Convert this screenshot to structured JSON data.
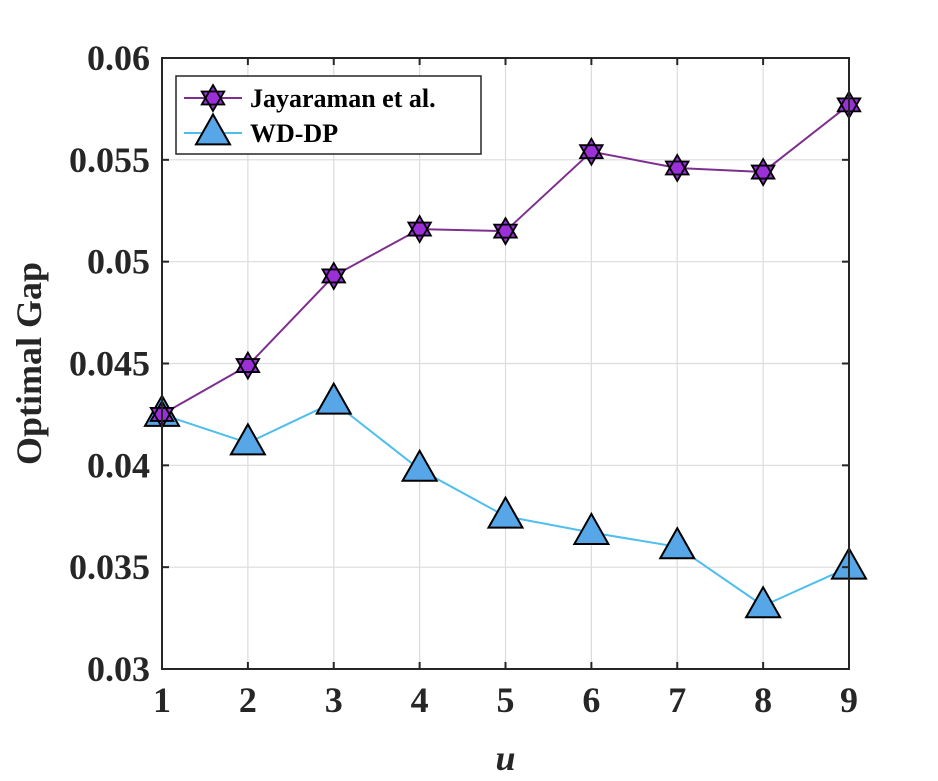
{
  "chart_data": {
    "type": "line",
    "title": "",
    "xlabel": "u",
    "ylabel": "Optimal Gap",
    "x": [
      1,
      2,
      3,
      4,
      5,
      6,
      7,
      8,
      9
    ],
    "xlim": [
      1,
      9
    ],
    "ylim": [
      0.03,
      0.06
    ],
    "xticks": [
      "1",
      "2",
      "3",
      "4",
      "5",
      "6",
      "7",
      "8",
      "9"
    ],
    "yticks": [
      "0.03",
      "0.035",
      "0.04",
      "0.045",
      "0.05",
      "0.055",
      "0.06"
    ],
    "grid": true,
    "legend_position": "top-left",
    "series": [
      {
        "name": "Jayaraman et al.",
        "marker": "hexagram",
        "line_color": "#7E2F8E",
        "marker_color": "#9B30D9",
        "values": [
          0.0425,
          0.0449,
          0.0493,
          0.0516,
          0.0515,
          0.0554,
          0.0546,
          0.0544,
          0.0577
        ]
      },
      {
        "name": "WD-DP",
        "marker": "triangle",
        "line_color": "#4DBEEE",
        "marker_color": "#56A6E8",
        "values": [
          0.0425,
          0.0411,
          0.0431,
          0.0398,
          0.0375,
          0.0367,
          0.036,
          0.0331,
          0.035
        ]
      }
    ]
  }
}
